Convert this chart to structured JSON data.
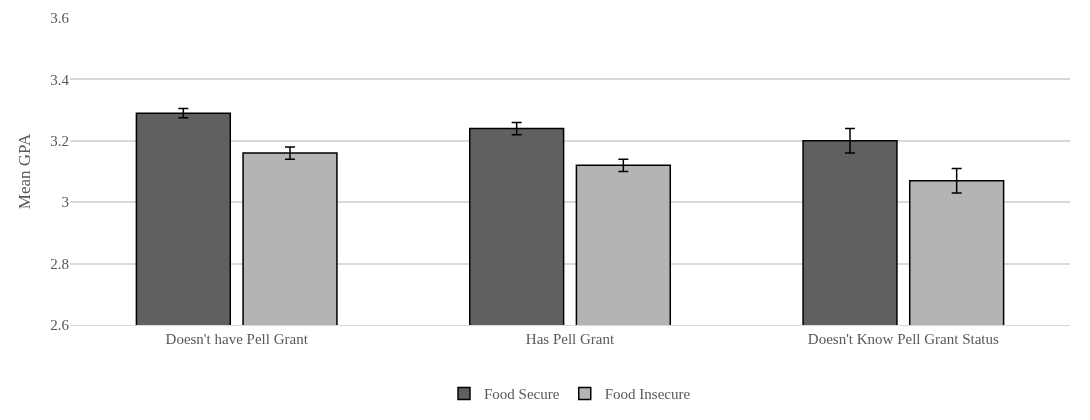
{
  "chart_data": {
    "type": "bar",
    "ylabel": "Mean GPA",
    "categories": [
      "Doesn't have Pell Grant",
      "Has Pell Grant",
      "Doesn't Know Pell Grant Status"
    ],
    "series": [
      {
        "name": "Food Secure",
        "color": "#606060",
        "values": [
          3.29,
          3.24,
          3.2
        ],
        "errors": [
          0.015,
          0.02,
          0.04
        ]
      },
      {
        "name": "Food Insecure",
        "color": "#b4b4b4",
        "values": [
          3.16,
          3.12,
          3.07
        ],
        "errors": [
          0.02,
          0.02,
          0.04
        ]
      }
    ],
    "ylim": [
      2.6,
      3.6
    ],
    "yticks": [
      2.6,
      2.8,
      3,
      3.2,
      3.4,
      3.6
    ],
    "grid": "y",
    "legend": "bottom"
  }
}
